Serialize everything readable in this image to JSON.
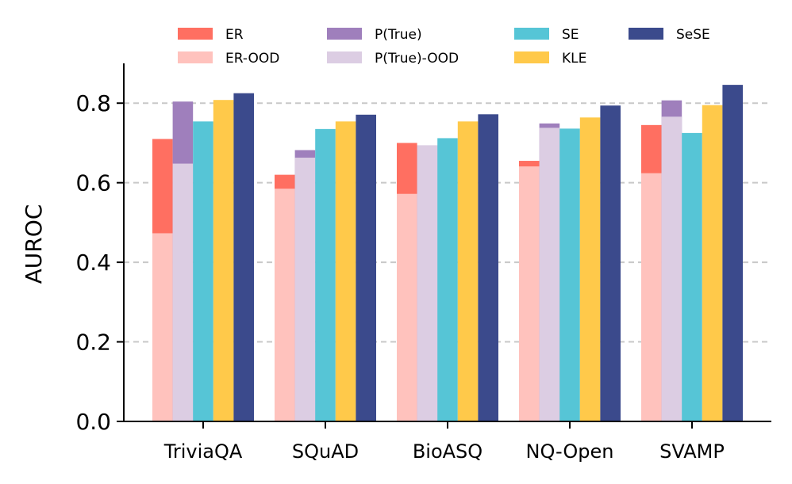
{
  "chart_data": {
    "type": "bar",
    "ylabel": "AUROC",
    "ylim": [
      0,
      0.9
    ],
    "yticks": [
      0.0,
      0.2,
      0.4,
      0.6,
      0.8
    ],
    "ytick_labels": [
      "0.0",
      "0.2",
      "0.4",
      "0.6",
      "0.8"
    ],
    "grid": "horizontal-dashed",
    "legend_position": "top",
    "categories": [
      "TriviaQA",
      "SQuAD",
      "BioASQ",
      "NQ-Open",
      "SVAMP"
    ],
    "groups": [
      {
        "name": "ER",
        "ood_name": "ER-OOD",
        "color": "#ff6f61",
        "ood_color": "#ffc2bd",
        "values": [
          0.71,
          0.62,
          0.7,
          0.655,
          0.745
        ],
        "ood_values": [
          0.473,
          0.585,
          0.572,
          0.641,
          0.624
        ]
      },
      {
        "name": "P(True)",
        "ood_name": "P(True)-OOD",
        "color": "#9f7fbc",
        "ood_color": "#dccde3",
        "values": [
          0.804,
          0.682,
          0.694,
          0.749,
          0.807
        ],
        "ood_values": [
          0.648,
          0.663,
          0.694,
          0.738,
          0.766
        ]
      },
      {
        "name": "SE",
        "color": "#56c5d6",
        "values": [
          0.754,
          0.735,
          0.712,
          0.736,
          0.725
        ]
      },
      {
        "name": "KLE",
        "color": "#ffc94a",
        "values": [
          0.808,
          0.754,
          0.754,
          0.764,
          0.795
        ]
      },
      {
        "name": "SeSE",
        "color": "#3b4a8c",
        "values": [
          0.825,
          0.771,
          0.772,
          0.794,
          0.846
        ]
      }
    ],
    "legend": [
      {
        "label": "ER",
        "color": "#ff6f61"
      },
      {
        "label": "ER-OOD",
        "color": "#ffc2bd"
      },
      {
        "label": "P(True)",
        "color": "#9f7fbc"
      },
      {
        "label": "P(True)-OOD",
        "color": "#dccde3"
      },
      {
        "label": "SE",
        "color": "#56c5d6"
      },
      {
        "label": "KLE",
        "color": "#ffc94a"
      },
      {
        "label": "SeSE",
        "color": "#3b4a8c"
      }
    ]
  }
}
